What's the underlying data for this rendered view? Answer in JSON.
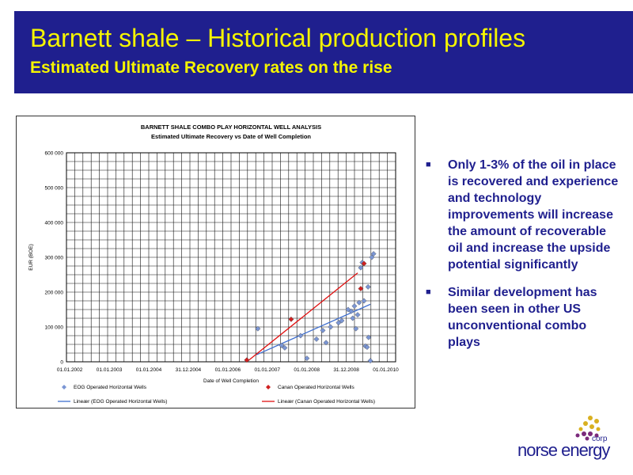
{
  "slide": {
    "title": "Barnett shale – Historical production profiles",
    "subtitle": "Estimated Ultimate Recovery rates on the rise"
  },
  "bullets": [
    "Only 1-3% of the oil in place is recovered and experience and technology improvements will increase the amount of recoverable oil and increase the upside potential significantly",
    "Similar development has been seen in other US unconventional combo plays"
  ],
  "logo": {
    "name": "norse energy",
    "suffix": "corp"
  },
  "colors": {
    "band": "#1f1f8e",
    "title": "#f5f500",
    "eog": "#7b96d4",
    "canan": "#d02020",
    "eog_line": "#3f6fcf",
    "canan_line": "#e01010"
  },
  "chart_data": {
    "type": "scatter",
    "title": "BARNETT SHALE COMBO PLAY HORIZONTAL WELL ANALYSIS",
    "subtitle": "Estimated Ultimate Recovery vs Date of Well Completion",
    "xlabel": "Date of Well Completion",
    "ylabel": "EUR (BOE)",
    "x_tick_labels": [
      "01.01.2002",
      "01.01.2003",
      "01.01.2004",
      "31.12.2004",
      "01.01.2006",
      "01.01.2007",
      "01.01.2008",
      "31.12.2008",
      "01.01.2010"
    ],
    "xlim": [
      "2002-01-01",
      "2010-09-01"
    ],
    "y_tick_labels": [
      "0",
      "100 000",
      "200 000",
      "300 000",
      "400 000",
      "500 000",
      "600 000"
    ],
    "ylim": [
      0,
      600000
    ],
    "grid": true,
    "legend_placement": "bottom",
    "series": [
      {
        "name": "EOG Operated Horizontal Wells",
        "marker": "diamond",
        "points": [
          [
            "2007-01-15",
            95000
          ],
          [
            "2007-09-01",
            47000
          ],
          [
            "2007-10-01",
            40000
          ],
          [
            "2008-03-01",
            75000
          ],
          [
            "2008-05-01",
            10000
          ],
          [
            "2008-08-01",
            65000
          ],
          [
            "2008-10-01",
            90000
          ],
          [
            "2008-11-01",
            55000
          ],
          [
            "2008-12-15",
            100000
          ],
          [
            "2009-03-01",
            112000
          ],
          [
            "2009-04-01",
            118000
          ],
          [
            "2009-06-01",
            150000
          ],
          [
            "2009-07-01",
            145000
          ],
          [
            "2009-07-15",
            125000
          ],
          [
            "2009-08-01",
            160000
          ],
          [
            "2009-08-15",
            95000
          ],
          [
            "2009-09-01",
            135000
          ],
          [
            "2009-09-15",
            170000
          ],
          [
            "2009-10-01",
            270000
          ],
          [
            "2009-10-15",
            285000
          ],
          [
            "2009-11-01",
            175000
          ],
          [
            "2009-11-15",
            45000
          ],
          [
            "2009-12-01",
            42000
          ],
          [
            "2009-12-10",
            215000
          ],
          [
            "2009-12-15",
            70000
          ],
          [
            "2010-01-01",
            3000
          ],
          [
            "2010-01-15",
            300000
          ],
          [
            "2010-02-01",
            310000
          ]
        ]
      },
      {
        "name": "Canan Operated Horizontal Wells",
        "marker": "diamond",
        "points": [
          [
            "2006-10-01",
            5000
          ],
          [
            "2007-12-01",
            122000
          ],
          [
            "2009-10-01",
            210000
          ],
          [
            "2009-11-01",
            282000
          ]
        ]
      },
      {
        "name": "Lineær (EOG Operated Horizontal Wells)",
        "line": true,
        "points": [
          [
            "2007-01-01",
            20000
          ],
          [
            "2010-01-01",
            165000
          ]
        ]
      },
      {
        "name": "Lineær (Canan Operated Horizontal Wells)",
        "line": true,
        "points": [
          [
            "2006-10-01",
            0
          ],
          [
            "2009-09-01",
            255000
          ]
        ]
      }
    ]
  }
}
